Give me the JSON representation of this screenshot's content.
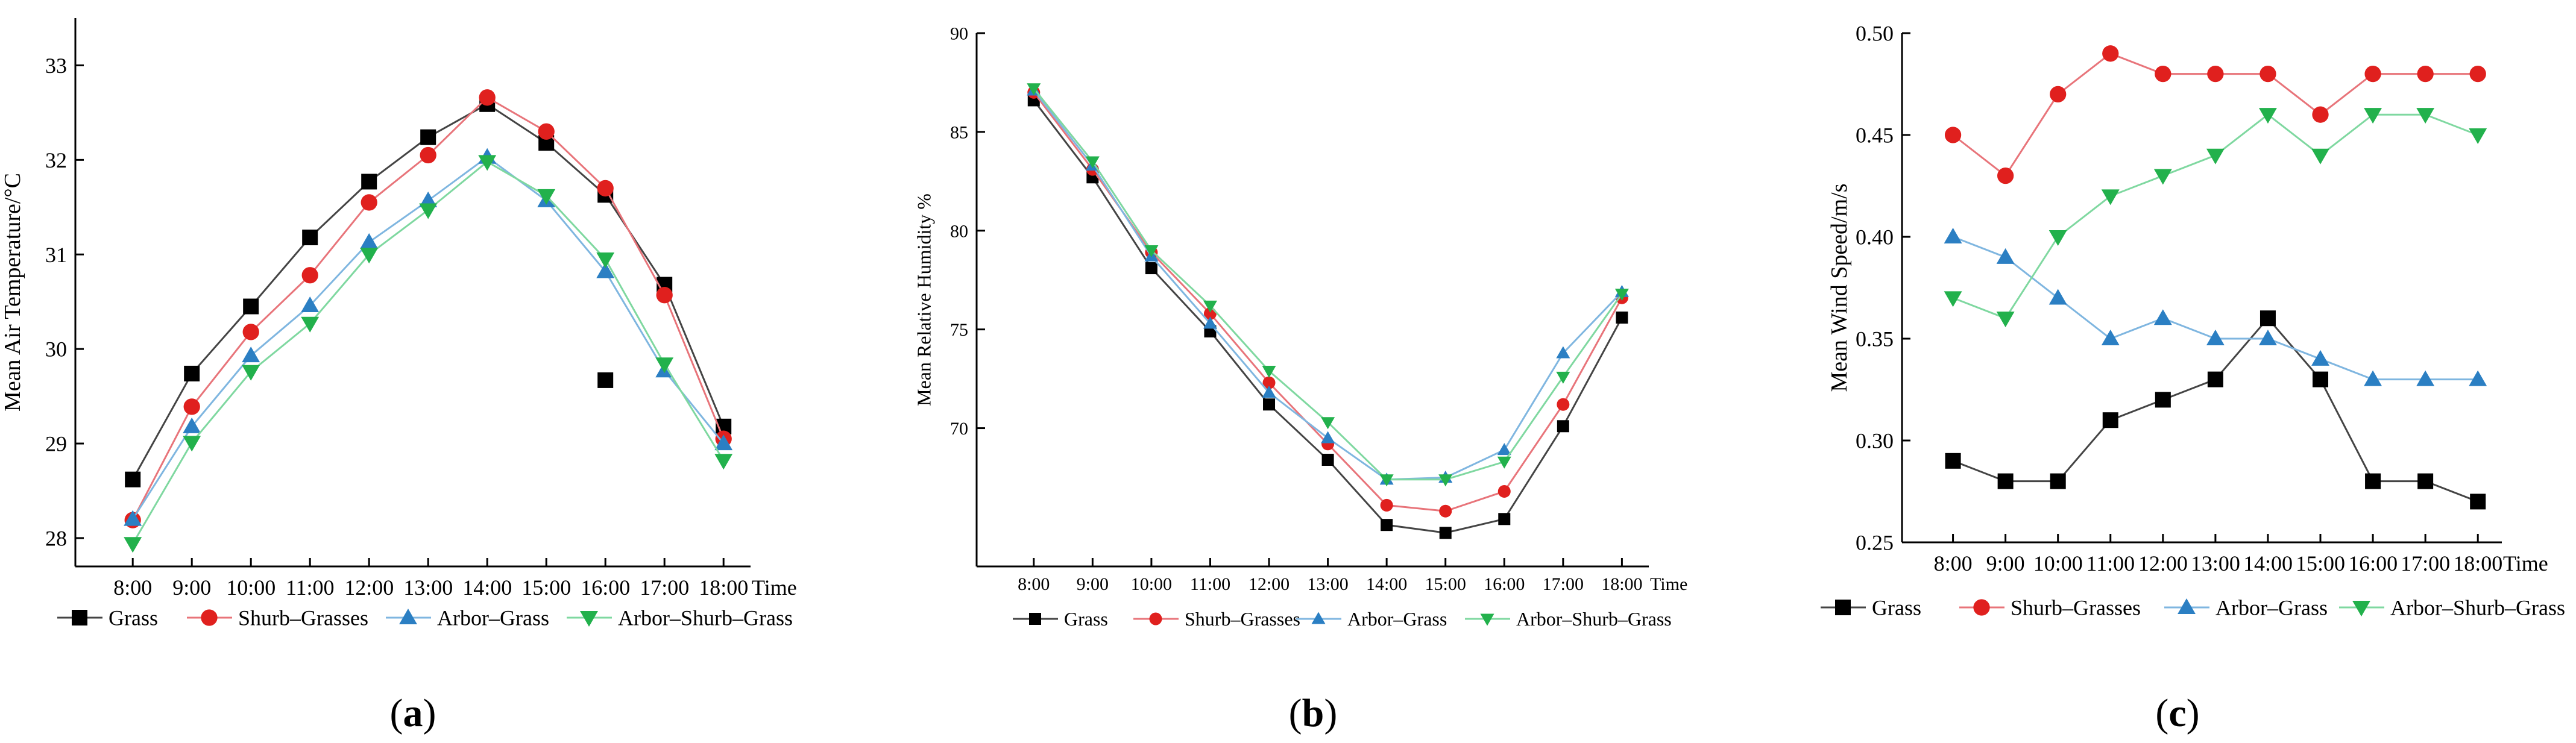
{
  "colors": {
    "Grass": "#000000",
    "Shurb–Grasses": "#e0201e",
    "Arbor–Grass": "#2b7fc3",
    "Arbor–Shurb–Grass": "#22b14c",
    "line_Grass": "#444444",
    "line_Shurb–Grasses": "#e8747a",
    "line_Arbor–Grass": "#7fb6e0",
    "line_Arbor–Shurb–Grass": "#7fd8a0"
  },
  "chart_data": [
    {
      "type": "line",
      "panel_label": "(a)",
      "title": "",
      "xlabel": "Time",
      "ylabel": "Mean Air Temperature/°C",
      "categories": [
        "8:00",
        "9:00",
        "10:00",
        "11:00",
        "12:00",
        "13:00",
        "14:00",
        "15:00",
        "16:00",
        "17:00",
        "18:00"
      ],
      "ylim": [
        27.7,
        33.5
      ],
      "yticks": [
        "28",
        "29",
        "30",
        "31",
        "32",
        "33"
      ],
      "series": [
        {
          "name": "Grass",
          "marker": "square",
          "values": [
            28.62,
            29.74,
            30.45,
            31.18,
            31.77,
            32.24,
            32.59,
            32.18,
            31.63,
            30.68,
            29.18
          ]
        },
        {
          "name": "Shurb–Grasses",
          "marker": "circle",
          "values": [
            28.19,
            29.39,
            30.18,
            30.78,
            31.55,
            32.05,
            32.66,
            32.3,
            31.7,
            30.57,
            29.05
          ]
        },
        {
          "name": "Arbor–Grass",
          "marker": "triangle-up",
          "values": [
            28.2,
            29.18,
            29.93,
            30.46,
            31.13,
            31.57,
            32.03,
            31.57,
            30.82,
            29.77,
            29.0
          ]
        },
        {
          "name": "Arbor–Shurb–Grass",
          "marker": "triangle-down",
          "values": [
            27.94,
            29.01,
            29.76,
            30.27,
            31.0,
            31.47,
            31.98,
            31.62,
            30.95,
            29.84,
            28.82
          ]
        }
      ],
      "extra_points": [
        {
          "series": "Grass",
          "x": "16:00",
          "y": 29.67
        }
      ],
      "legend": [
        "Grass",
        "Shurb–Grasses",
        "Arbor–Grass",
        "Arbor–Shurb–Grass"
      ]
    },
    {
      "type": "line",
      "panel_label": "(b)",
      "title": "",
      "xlabel": "Time",
      "ylabel": "Mean Relative Humidity %",
      "categories": [
        "8:00",
        "9:00",
        "10:00",
        "11:00",
        "12:00",
        "13:00",
        "14:00",
        "15:00",
        "16:00",
        "17:00",
        "18:00"
      ],
      "ylim": [
        63,
        90
      ],
      "yticks": [
        "70",
        "75",
        "80",
        "85",
        "90"
      ],
      "series": [
        {
          "name": "Grass",
          "marker": "square",
          "values": [
            86.6,
            82.7,
            78.1,
            74.9,
            71.2,
            68.4,
            65.1,
            64.7,
            65.4,
            70.1,
            75.6
          ]
        },
        {
          "name": "Shurb–Grasses",
          "marker": "circle",
          "values": [
            87.0,
            83.1,
            78.9,
            75.8,
            72.3,
            69.2,
            66.1,
            65.8,
            66.8,
            71.2,
            76.6
          ]
        },
        {
          "name": "Arbor–Grass",
          "marker": "triangle-up",
          "values": [
            87.1,
            83.3,
            78.7,
            75.3,
            71.8,
            69.5,
            67.4,
            67.5,
            68.9,
            73.8,
            76.9
          ]
        },
        {
          "name": "Arbor–Shurb–Grass",
          "marker": "triangle-down",
          "values": [
            87.2,
            83.5,
            79.0,
            76.2,
            72.9,
            70.3,
            67.4,
            67.4,
            68.3,
            72.6,
            76.8
          ]
        }
      ],
      "extra_points": [],
      "legend": [
        "Grass",
        "Shurb–Grasses",
        "Arbor–Grass",
        "Arbor–Shurb–Grass"
      ]
    },
    {
      "type": "line",
      "panel_label": "(c)",
      "title": "",
      "xlabel": "Time",
      "ylabel": "Mean Wind Speed/m/s",
      "categories": [
        "8:00",
        "9:00",
        "10:00",
        "11:00",
        "12:00",
        "13:00",
        "14:00",
        "15:00",
        "16:00",
        "17:00",
        "18:00"
      ],
      "ylim": [
        0.25,
        0.5
      ],
      "yticks": [
        "0.25",
        "0.30",
        "0.35",
        "0.40",
        "0.45",
        "0.50"
      ],
      "series": [
        {
          "name": "Grass",
          "marker": "square",
          "values": [
            0.29,
            0.28,
            0.28,
            0.31,
            0.32,
            0.33,
            0.36,
            0.33,
            0.28,
            0.28,
            0.27
          ]
        },
        {
          "name": "Shurb–Grasses",
          "marker": "circle",
          "values": [
            0.45,
            0.43,
            0.47,
            0.49,
            0.48,
            0.48,
            0.48,
            0.46,
            0.48,
            0.48,
            0.48
          ]
        },
        {
          "name": "Arbor–Grass",
          "marker": "triangle-up",
          "values": [
            0.4,
            0.39,
            0.37,
            0.35,
            0.36,
            0.35,
            0.35,
            0.34,
            0.33,
            0.33,
            0.33
          ]
        },
        {
          "name": "Arbor–Shurb–Grass",
          "marker": "triangle-down",
          "values": [
            0.37,
            0.36,
            0.4,
            0.42,
            0.43,
            0.44,
            0.46,
            0.44,
            0.46,
            0.46,
            0.45
          ]
        }
      ],
      "extra_points": [],
      "legend": [
        "Grass",
        "Shurb–Grasses",
        "Arbor–Grass",
        "Arbor–Shurb–Grass"
      ]
    }
  ]
}
